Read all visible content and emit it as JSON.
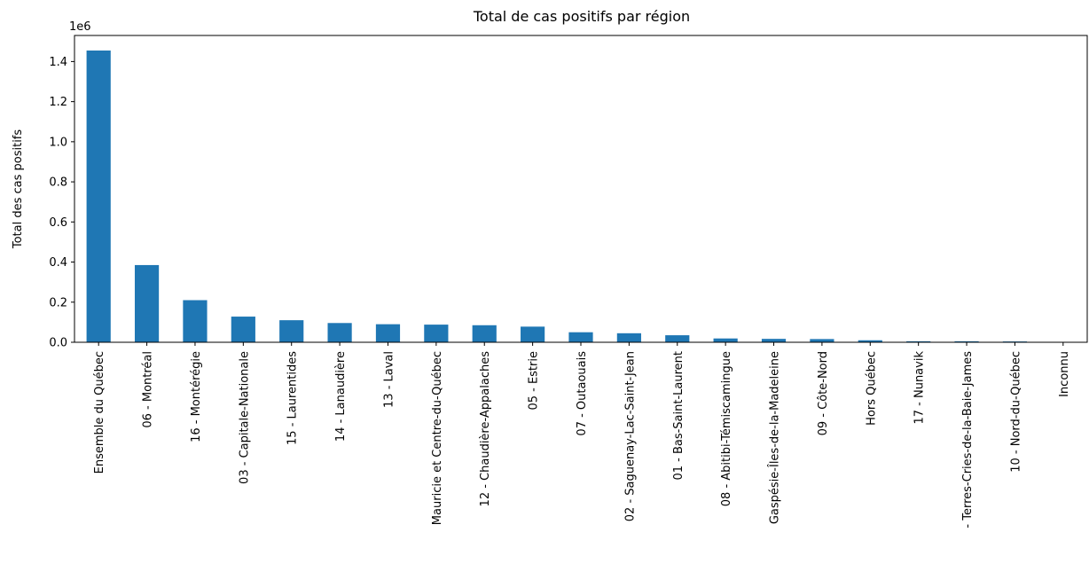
{
  "chart_data": {
    "type": "bar",
    "title": "Total de cas positifs par région",
    "ylabel": "Total des cas positifs",
    "xlabel": "",
    "scale_note": "1e6",
    "ylim": [
      0,
      1.53
    ],
    "yticks": [
      0.0,
      0.2,
      0.4,
      0.6,
      0.8,
      1.0,
      1.2,
      1.4
    ],
    "ytick_labels": [
      "0.0",
      "0.2",
      "0.4",
      "0.6",
      "0.8",
      "1.0",
      "1.2",
      "1.4"
    ],
    "grid": false,
    "color": "#1f77b4",
    "categories": [
      "Ensemble du Québec",
      "06 - Montréal",
      "16 - Montérégie",
      "03 - Capitale-Nationale",
      "15 - Laurentides",
      "14 - Lanaudière",
      "13 - Laval",
      "Mauricie et Centre-du-Québec",
      "12 - Chaudière-Appalaches",
      "05 - Estrie",
      "07 - Outaouais",
      "02 - Saguenay-Lac-Saint-Jean",
      "01 - Bas-Saint-Laurent",
      "08 - Abitibi-Témiscamingue",
      "Gaspésie-Îles-de-la-Madeleine",
      "09 - Côte-Nord",
      "Hors Québec",
      "17 - Nunavik",
      "- Terres-Cries-de-la-Baie-James",
      "10 - Nord-du-Québec",
      "Inconnu"
    ],
    "values": [
      1.455,
      0.385,
      0.21,
      0.128,
      0.11,
      0.096,
      0.09,
      0.088,
      0.085,
      0.078,
      0.05,
      0.045,
      0.035,
      0.019,
      0.017,
      0.016,
      0.01,
      0.005,
      0.005,
      0.004,
      0.0
    ]
  }
}
